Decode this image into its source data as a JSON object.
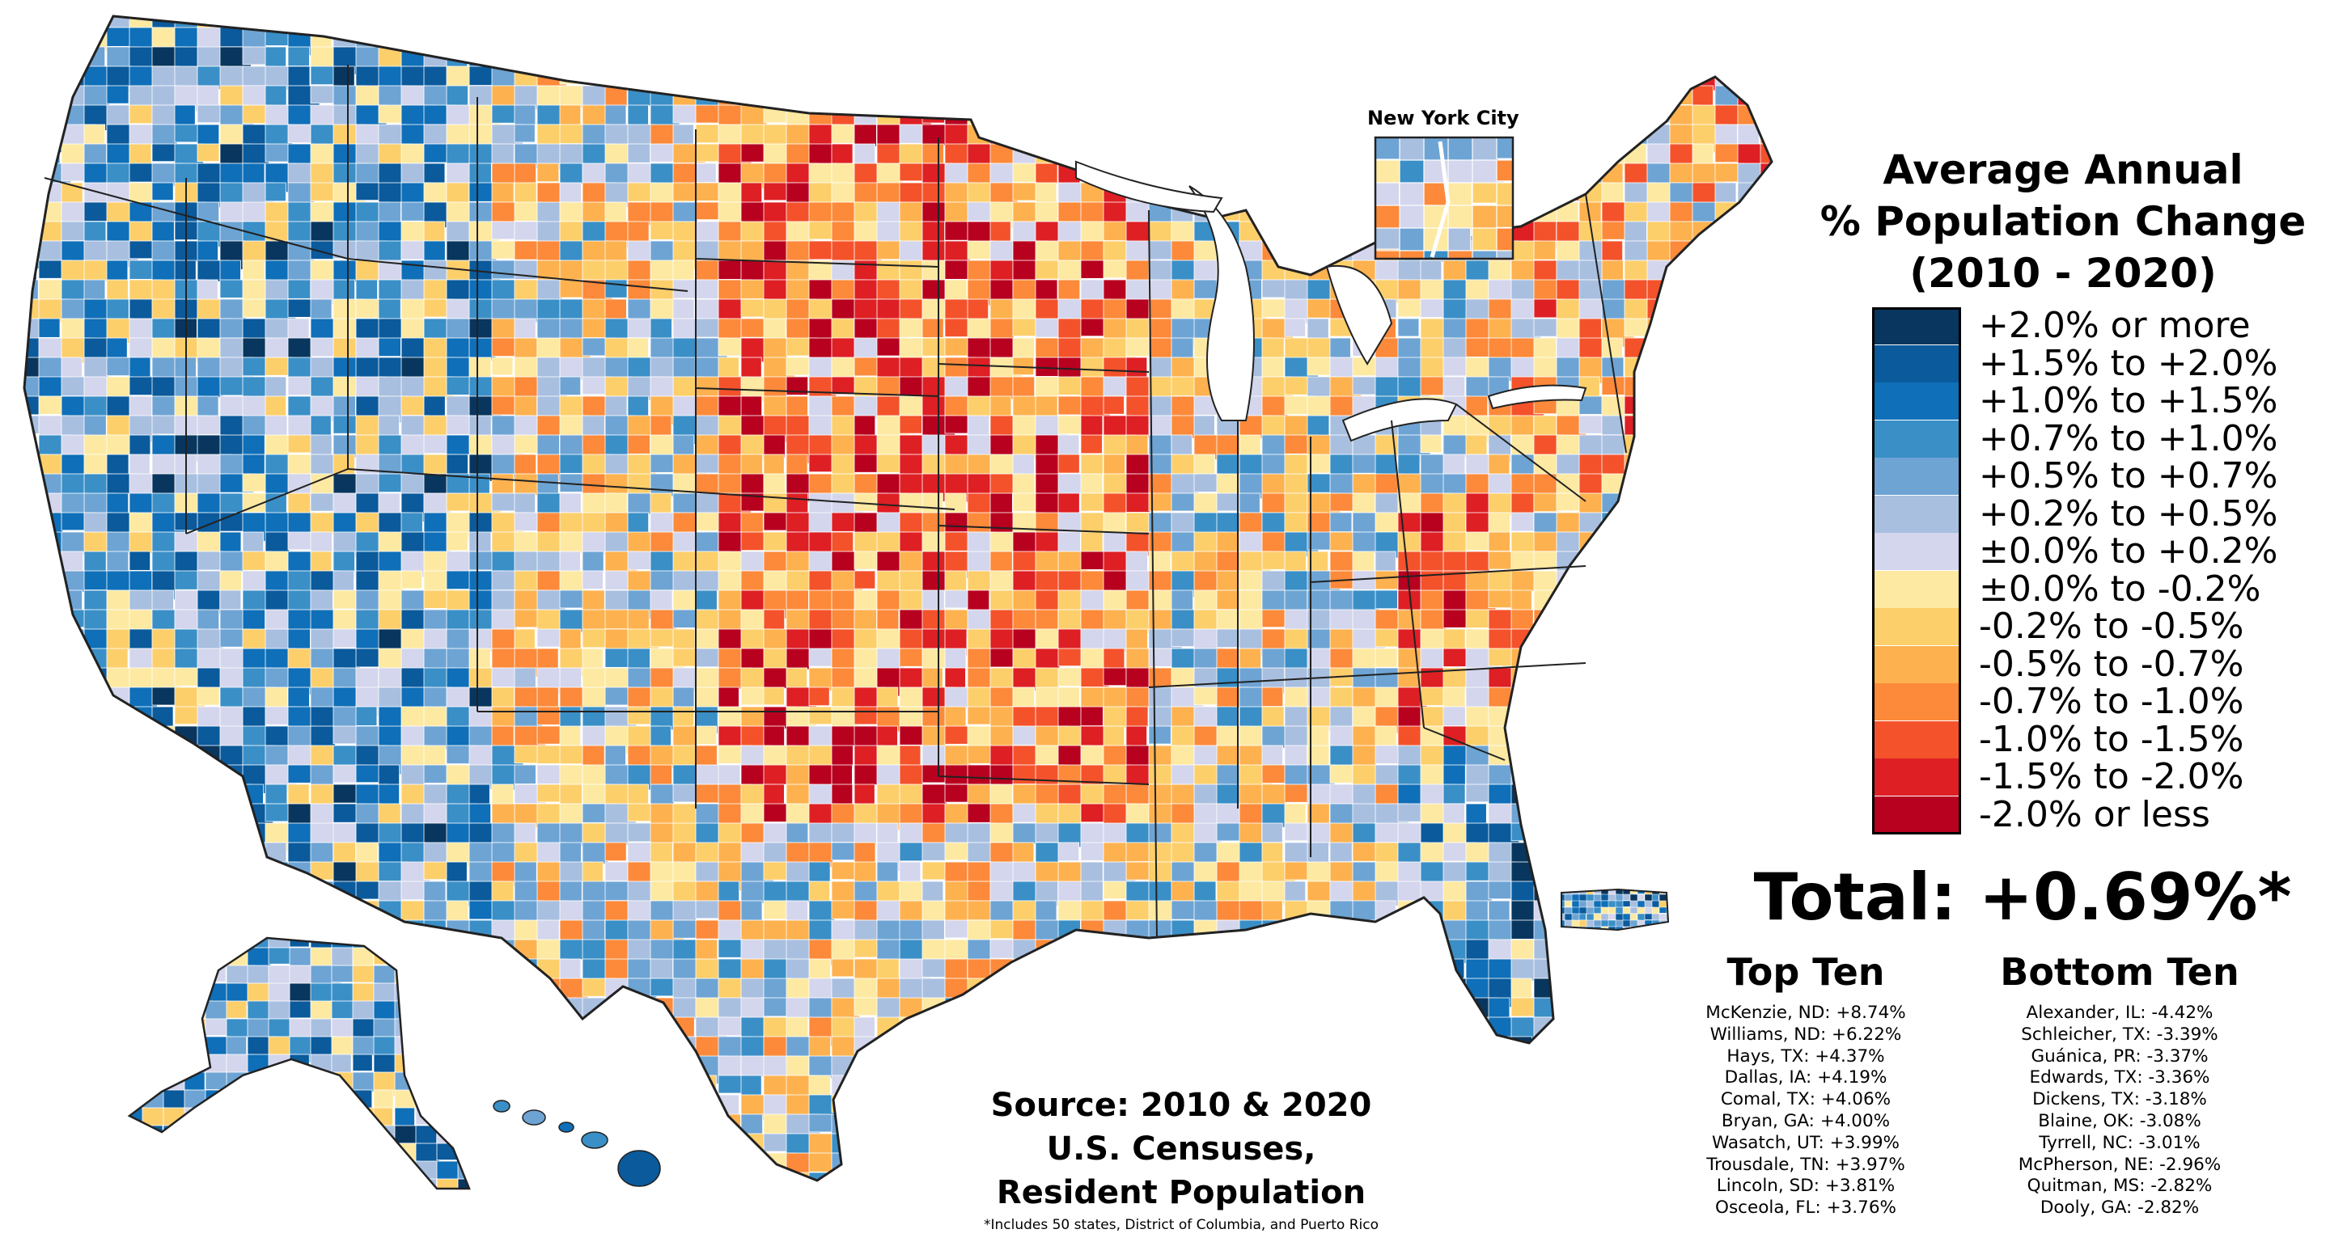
{
  "legend": {
    "title_lines": [
      "Average Annual",
      "% Population Change",
      "(2010 - 2020)"
    ],
    "bins": [
      {
        "label": "+2.0% or more",
        "color": "#08365e"
      },
      {
        "label": "+1.5% to +2.0%",
        "color": "#0a5a9c"
      },
      {
        "label": "+1.0% to +1.5%",
        "color": "#0f6fb8"
      },
      {
        "label": "+0.7% to +1.0%",
        "color": "#3a8fc7"
      },
      {
        "label": "+0.5% to +0.7%",
        "color": "#6da4d4"
      },
      {
        "label": "+0.2% to +0.5%",
        "color": "#a8bfe0"
      },
      {
        "label": "±0.0% to +0.2%",
        "color": "#d3d6ec"
      },
      {
        "label": "±0.0% to -0.2%",
        "color": "#fde9a1"
      },
      {
        "label": "-0.2% to -0.5%",
        "color": "#fdcf6b"
      },
      {
        "label": "-0.5% to -0.7%",
        "color": "#fdb24f"
      },
      {
        "label": "-0.7% to -1.0%",
        "color": "#fc8a3a"
      },
      {
        "label": "-1.0% to -1.5%",
        "color": "#f4522b"
      },
      {
        "label": "-1.5% to -2.0%",
        "color": "#de1f24"
      },
      {
        "label": "-2.0% or less",
        "color": "#b8001f"
      }
    ]
  },
  "inset": {
    "title": "New York City"
  },
  "total": "Total: +0.69%*",
  "top_ten": {
    "heading": "Top Ten",
    "items": [
      "McKenzie, ND: +8.74%",
      "Williams, ND: +6.22%",
      "Hays, TX: +4.37%",
      "Dallas, IA: +4.19%",
      "Comal, TX: +4.06%",
      "Bryan, GA: +4.00%",
      "Wasatch, UT: +3.99%",
      "Trousdale, TN: +3.97%",
      "Lincoln, SD: +3.81%",
      "Osceola, FL: +3.76%"
    ]
  },
  "bottom_ten": {
    "heading": "Bottom Ten",
    "items": [
      "Alexander, IL: -4.42%",
      "Schleicher, TX: -3.39%",
      "Guánica, PR: -3.37%",
      "Edwards, TX: -3.36%",
      "Dickens, TX: -3.18%",
      "Blaine, OK: -3.08%",
      "Tyrrell, NC: -3.01%",
      "McPherson, NE: -2.96%",
      "Quitman, MS: -2.82%",
      "Dooly, GA: -2.82%"
    ]
  },
  "source_lines": [
    "Source: 2010 & 2020",
    "U.S. Censuses,",
    "Resident Population"
  ],
  "footnote": "*Includes 50 states, District of Columbia, and Puerto Rico"
}
